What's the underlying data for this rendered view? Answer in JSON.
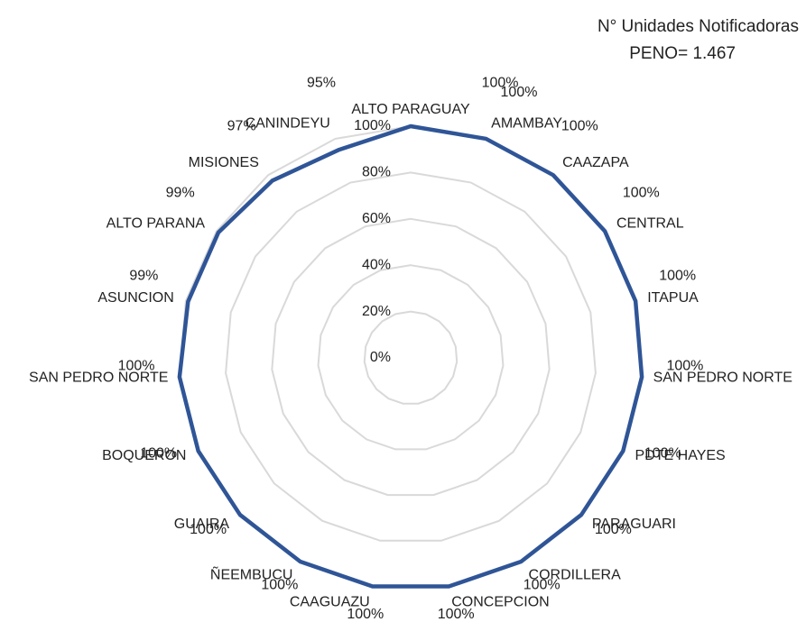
{
  "chart_data": {
    "type": "radar",
    "title": "N° Unidades Notificadoras",
    "subtitle": "PENO= 1.467",
    "categories": [
      "ALTO PARAGUAY",
      "AMAMBAY",
      "CAAZAPA",
      "CENTRAL",
      "ITAPUA",
      "SAN PEDRO NORTE",
      "PDTE HAYES",
      "PARAGUARI",
      "CORDILLERA",
      "CONCEPCION",
      "CAAGUAZU",
      "ÑEEMBUCU",
      "GUAIRA",
      "BOQUERON",
      "SAN PEDRO NORTE",
      "ASUNCION",
      "ALTO PARANA",
      "MISIONES",
      "CANINDEYU"
    ],
    "series": [
      {
        "color": "#2f5597",
        "values": [
          100,
          100,
          100,
          100,
          100,
          100,
          100,
          100,
          100,
          100,
          100,
          100,
          100,
          100,
          100,
          99,
          99,
          97,
          95
        ],
        "value_labels": [
          "100%",
          "100%",
          "100%",
          "100%",
          "100%",
          "100%",
          "100%",
          "100%",
          "100%",
          "100%",
          "100%",
          "100%",
          "100%",
          "100%",
          "100%",
          "99%",
          "99%",
          "97%",
          "95%"
        ]
      }
    ],
    "ylim": [
      0,
      100
    ],
    "yticks": [
      {
        "value": 0,
        "label": "0%"
      },
      {
        "value": 20,
        "label": "20%"
      },
      {
        "value": 40,
        "label": "40%"
      },
      {
        "value": 60,
        "label": "60%"
      },
      {
        "value": 80,
        "label": "80%"
      },
      {
        "value": 100,
        "label": "100%"
      }
    ],
    "grid": true
  }
}
